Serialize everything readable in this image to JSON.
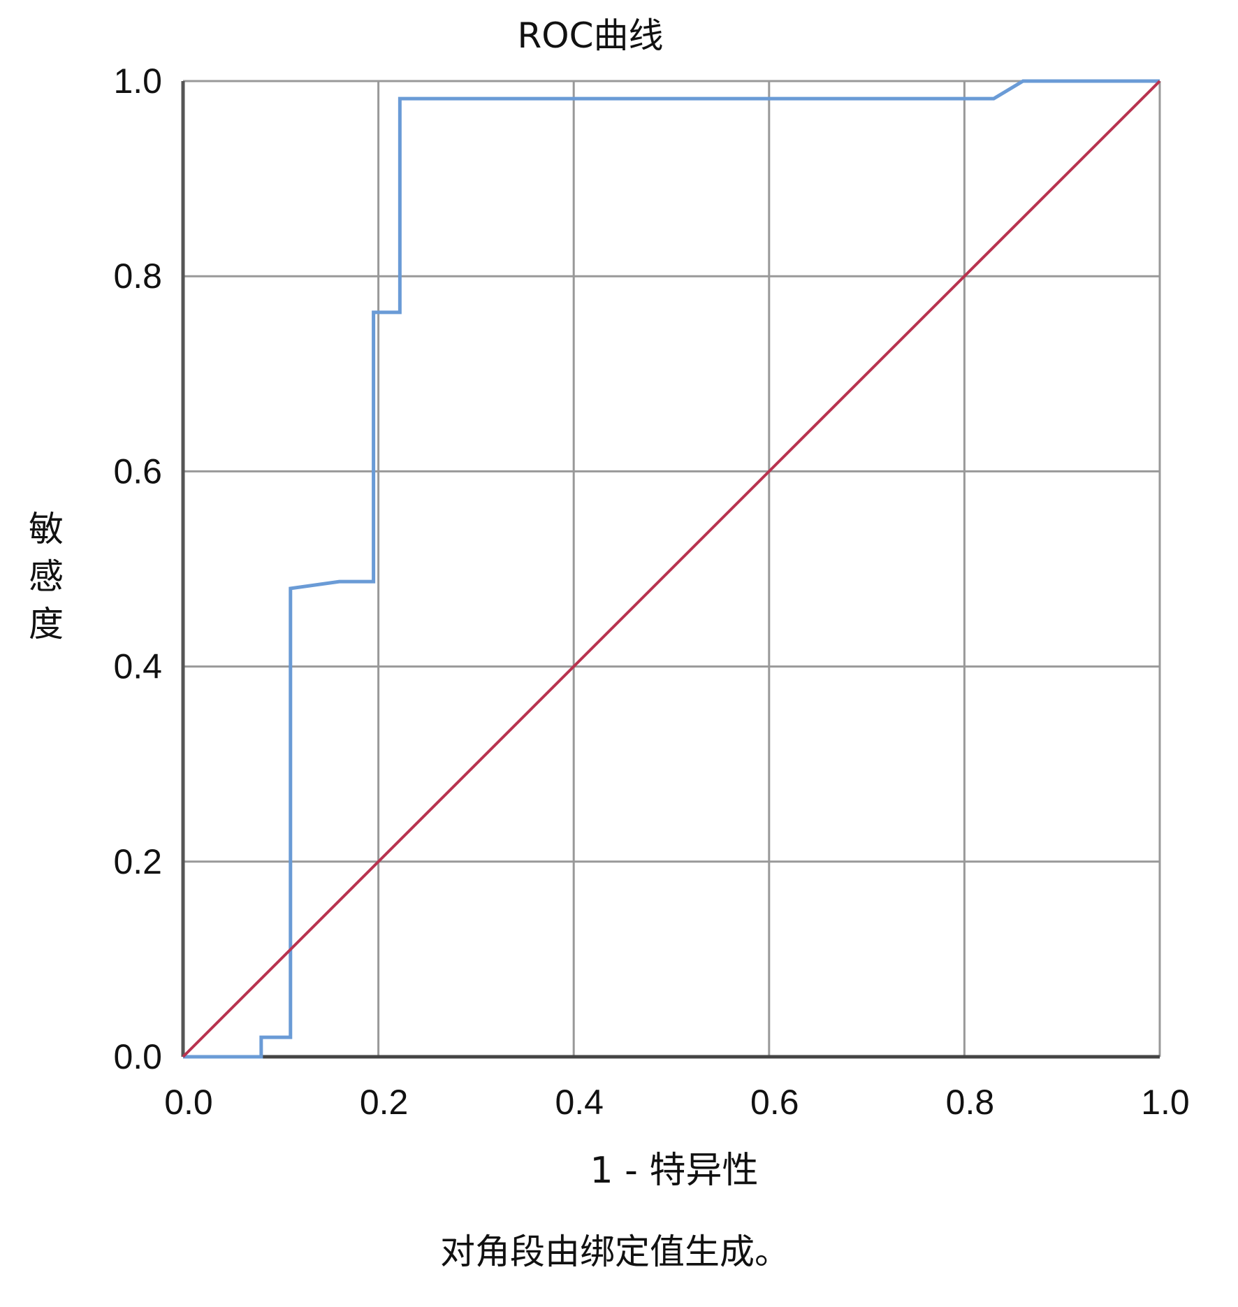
{
  "chart_data": {
    "type": "line",
    "title": "ROC曲线",
    "xlabel": "1 - 特异性",
    "ylabel": "敏感度",
    "footnote": "对角段由绑定值生成。",
    "xlim": [
      0,
      1
    ],
    "ylim": [
      0,
      1
    ],
    "grid": true,
    "x_ticks": [
      "0.0",
      "0.2",
      "0.4",
      "0.6",
      "0.8",
      "1.0"
    ],
    "y_ticks": [
      "0.0",
      "0.2",
      "0.4",
      "0.6",
      "0.8",
      "1.0"
    ],
    "series": [
      {
        "color": "#6a9bd6",
        "points": [
          [
            0,
            0
          ],
          [
            0.08,
            0
          ],
          [
            0.08,
            0.02
          ],
          [
            0.11,
            0.02
          ],
          [
            0.11,
            0.48
          ],
          [
            0.16,
            0.487
          ],
          [
            0.195,
            0.487
          ],
          [
            0.195,
            0.763
          ],
          [
            0.222,
            0.763
          ],
          [
            0.222,
            0.982
          ],
          [
            0.83,
            0.982
          ],
          [
            0.86,
            1.0
          ],
          [
            1.0,
            1.0
          ]
        ]
      },
      {
        "color": "#b8334f",
        "points": [
          [
            0,
            0
          ],
          [
            1,
            1
          ]
        ]
      }
    ]
  }
}
